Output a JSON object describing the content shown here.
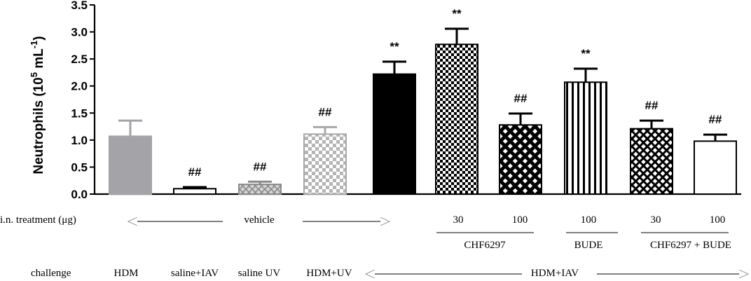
{
  "chart_data": {
    "type": "bar",
    "ylabel": "Neutrophils (10^5 mL^-1)",
    "ylabel_parts": {
      "main": "Neutrophils (10",
      "exp1": "5",
      "mid": " mL",
      "exp2": "-1",
      "end": ")"
    },
    "ylim": [
      0,
      3.5
    ],
    "yticks": [
      "0.0",
      "0.5",
      "1.0",
      "1.5",
      "2.0",
      "2.5",
      "3.0",
      "3.5"
    ],
    "bars": [
      {
        "value": 1.07,
        "error": 0.29,
        "annotation": "",
        "pattern": "solid-gray"
      },
      {
        "value": 0.1,
        "error": 0.03,
        "annotation": "##",
        "pattern": "empty"
      },
      {
        "value": 0.18,
        "error": 0.05,
        "annotation": "##",
        "pattern": "gray-cross"
      },
      {
        "value": 1.11,
        "error": 0.13,
        "annotation": "##",
        "pattern": "gray-check"
      },
      {
        "value": 2.22,
        "error": 0.23,
        "annotation": "**",
        "pattern": "solid-black"
      },
      {
        "value": 2.77,
        "error": 0.29,
        "annotation": "**",
        "pattern": "fine-check"
      },
      {
        "value": 1.28,
        "error": 0.21,
        "annotation": "##",
        "pattern": "coarse-check"
      },
      {
        "value": 2.07,
        "error": 0.25,
        "annotation": "**",
        "pattern": "vertical-stripes"
      },
      {
        "value": 1.21,
        "error": 0.15,
        "annotation": "##",
        "pattern": "diamond-hatch"
      },
      {
        "value": 0.98,
        "error": 0.12,
        "annotation": "##",
        "pattern": "empty"
      }
    ],
    "colors": {
      "gray": "#a3a3a8",
      "light_gray": "#bdbdbd",
      "black": "#000000"
    }
  },
  "treatment_row": {
    "label": "i.n. treatment (μg)",
    "vehicle": "vehicle",
    "doses": [
      "30",
      "100",
      "100",
      "30",
      "100"
    ],
    "groups": [
      "CHF6297",
      "BUDE",
      "CHF6297 + BUDE"
    ]
  },
  "challenge_row": {
    "label": "challenge",
    "items": [
      "HDM",
      "saline+IAV",
      "saline UV",
      "HDM+UV",
      "HDM+IAV"
    ]
  }
}
